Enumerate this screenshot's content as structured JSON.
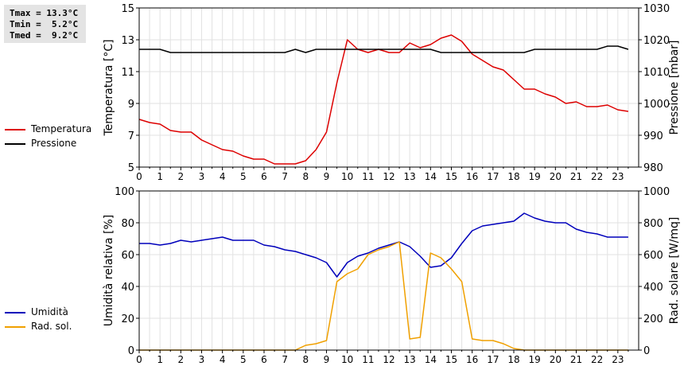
{
  "stats": {
    "tmax": "Tmax = 13.3°C",
    "tmin": "Tmin =  5.2°C",
    "tmed": "Tmed =  9.2°C"
  },
  "legend_top": [
    {
      "label": "Temperatura",
      "color": "#dd0000"
    },
    {
      "label": "Pressione",
      "color": "#000000"
    }
  ],
  "legend_bottom": [
    {
      "label": "Umidità",
      "color": "#0000bb"
    },
    {
      "label": "Rad. sol.",
      "color": "#f0a000"
    }
  ],
  "chart_data": [
    {
      "type": "line",
      "xlabel": "",
      "xlim": [
        0,
        24
      ],
      "xticks": [
        "0",
        "1",
        "2",
        "3",
        "4",
        "5",
        "6",
        "7",
        "8",
        "9",
        "10",
        "11",
        "12",
        "13",
        "14",
        "15",
        "16",
        "17",
        "18",
        "19",
        "20",
        "21",
        "22",
        "23"
      ],
      "grid": true,
      "left_axis": {
        "label": "Temperatura [°C]",
        "ylim": [
          5,
          15
        ],
        "ticks": [
          "5",
          "7",
          "9",
          "11",
          "13",
          "15"
        ]
      },
      "right_axis": {
        "label": "Pressione [mbar]",
        "ylim": [
          980,
          1030
        ],
        "ticks": [
          "980",
          "990",
          "1000",
          "1010",
          "1020",
          "1030"
        ]
      },
      "series": [
        {
          "name": "Temperatura",
          "axis": "left",
          "color": "#dd0000",
          "x": [
            0,
            0.5,
            1,
            1.5,
            2,
            2.5,
            3,
            3.5,
            4,
            4.5,
            5,
            5.5,
            6,
            6.5,
            7,
            7.5,
            8,
            8.5,
            9,
            9.5,
            10,
            10.5,
            11,
            11.5,
            12,
            12.5,
            13,
            13.5,
            14,
            14.5,
            15,
            15.5,
            16,
            16.5,
            17,
            17.5,
            18,
            18.5,
            19,
            19.5,
            20,
            20.5,
            21,
            21.5,
            22,
            22.5,
            23,
            23.5
          ],
          "values": [
            8.0,
            7.8,
            7.7,
            7.3,
            7.2,
            7.2,
            6.7,
            6.4,
            6.1,
            6.0,
            5.7,
            5.5,
            5.5,
            5.2,
            5.2,
            5.2,
            5.4,
            6.1,
            7.2,
            10.3,
            13.0,
            12.4,
            12.2,
            12.4,
            12.2,
            12.2,
            12.8,
            12.5,
            12.7,
            13.1,
            13.3,
            12.9,
            12.1,
            11.7,
            11.3,
            11.1,
            10.5,
            9.9,
            9.9,
            9.6,
            9.4,
            9.0,
            9.1,
            8.8,
            8.8,
            8.9,
            8.6,
            8.5
          ]
        },
        {
          "name": "Pressione",
          "axis": "right",
          "color": "#000000",
          "x": [
            0,
            0.5,
            1,
            1.5,
            2,
            2.5,
            3,
            3.5,
            4,
            4.5,
            5,
            5.5,
            6,
            6.5,
            7,
            7.5,
            8,
            8.5,
            9,
            9.5,
            10,
            10.5,
            11,
            11.5,
            12,
            12.5,
            13,
            13.5,
            14,
            14.5,
            15,
            15.5,
            16,
            16.5,
            17,
            17.5,
            18,
            18.5,
            19,
            19.5,
            20,
            20.5,
            21,
            21.5,
            22,
            22.5,
            23,
            23.5
          ],
          "values": [
            1017,
            1017,
            1017,
            1016,
            1016,
            1016,
            1016,
            1016,
            1016,
            1016,
            1016,
            1016,
            1016,
            1016,
            1016,
            1017,
            1016,
            1017,
            1017,
            1017,
            1017,
            1017,
            1017,
            1017,
            1017,
            1017,
            1017,
            1017,
            1017,
            1016,
            1016,
            1016,
            1016,
            1016,
            1016,
            1016,
            1016,
            1016,
            1017,
            1017,
            1017,
            1017,
            1017,
            1017,
            1017,
            1018,
            1018,
            1017
          ]
        }
      ]
    },
    {
      "type": "line",
      "xlabel": "",
      "xlim": [
        0,
        24
      ],
      "xticks": [
        "0",
        "1",
        "2",
        "3",
        "4",
        "5",
        "6",
        "7",
        "8",
        "9",
        "10",
        "11",
        "12",
        "13",
        "14",
        "15",
        "16",
        "17",
        "18",
        "19",
        "20",
        "21",
        "22",
        "23"
      ],
      "grid": true,
      "left_axis": {
        "label": "Umidità relativa [%]",
        "ylim": [
          0,
          100
        ],
        "ticks": [
          "0",
          "20",
          "40",
          "60",
          "80",
          "100"
        ]
      },
      "right_axis": {
        "label": "Rad. solare [W/mq]",
        "ylim": [
          0,
          1000
        ],
        "ticks": [
          "0",
          "200",
          "400",
          "600",
          "800",
          "1000"
        ]
      },
      "series": [
        {
          "name": "Umidità",
          "axis": "left",
          "color": "#0000bb",
          "x": [
            0,
            0.5,
            1,
            1.5,
            2,
            2.5,
            3,
            3.5,
            4,
            4.5,
            5,
            5.5,
            6,
            6.5,
            7,
            7.5,
            8,
            8.5,
            9,
            9.5,
            10,
            10.5,
            11,
            11.5,
            12,
            12.5,
            13,
            13.5,
            14,
            14.5,
            15,
            15.5,
            16,
            16.5,
            17,
            17.5,
            18,
            18.5,
            19,
            19.5,
            20,
            20.5,
            21,
            21.5,
            22,
            22.5,
            23,
            23.5
          ],
          "values": [
            67,
            67,
            66,
            67,
            69,
            68,
            69,
            70,
            71,
            69,
            69,
            69,
            66,
            65,
            63,
            62,
            60,
            58,
            55,
            46,
            55,
            59,
            61,
            64,
            66,
            68,
            65,
            59,
            52,
            53,
            58,
            67,
            75,
            78,
            79,
            80,
            81,
            86,
            83,
            81,
            80,
            80,
            76,
            74,
            73,
            71,
            71,
            71
          ]
        },
        {
          "name": "Rad. sol.",
          "axis": "right",
          "color": "#f0a000",
          "x": [
            0,
            0.5,
            1,
            1.5,
            2,
            2.5,
            3,
            3.5,
            4,
            4.5,
            5,
            5.5,
            6,
            6.5,
            7,
            7.5,
            8,
            8.5,
            9,
            9.5,
            10,
            10.5,
            11,
            11.5,
            12,
            12.5,
            13,
            13.5,
            14,
            14.5,
            15,
            15.5,
            16,
            16.5,
            17,
            17.5,
            18,
            18.5,
            19,
            19.5,
            20,
            20.5,
            21,
            21.5,
            22,
            22.5,
            23,
            23.5
          ],
          "values": [
            0,
            0,
            0,
            0,
            0,
            0,
            0,
            0,
            0,
            0,
            0,
            0,
            0,
            0,
            0,
            0,
            30,
            40,
            60,
            430,
            480,
            510,
            600,
            630,
            650,
            680,
            70,
            80,
            610,
            580,
            510,
            430,
            70,
            60,
            60,
            40,
            10,
            0,
            0,
            0,
            0,
            0,
            0,
            0,
            0,
            0,
            0,
            0
          ]
        }
      ]
    }
  ]
}
